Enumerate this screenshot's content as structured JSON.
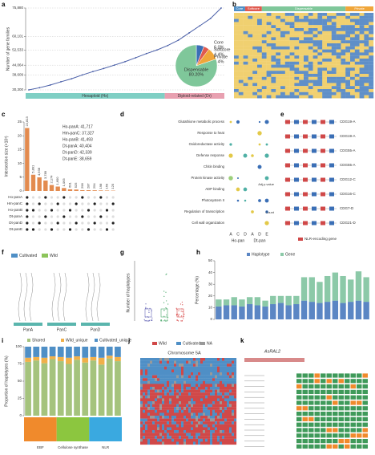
{
  "letters": [
    "a",
    "b",
    "c",
    "d",
    "e",
    "f",
    "g",
    "h",
    "i",
    "j",
    "k"
  ],
  "chart_data": [
    {
      "type": "line",
      "ylabel": "Number of gene families",
      "values": [
        30300,
        31500,
        33000,
        34800,
        36500,
        38600,
        40500,
        42200,
        44064,
        46000,
        48200,
        50500,
        52533,
        55000,
        58000,
        62000,
        66000,
        70000,
        75880
      ],
      "ylim": [
        30300,
        75880
      ],
      "yticks": [
        {
          "value": 30300,
          "label": "30,300"
        },
        {
          "value": 38609,
          "label": "38,609"
        },
        {
          "value": 44064,
          "label": "44,064"
        },
        {
          "value": 52533,
          "label": "52,533"
        },
        {
          "value": 60101,
          "label": "60,101"
        },
        {
          "value": 75880,
          "label": "75,880"
        }
      ],
      "color": "#4a5fa8",
      "groups": [
        {
          "name": "Hexaploid (Hx)",
          "color": "#7fcfc4"
        },
        {
          "name": "Diploid-related (Dr)",
          "color": "#e8a0b0"
        }
      ]
    },
    {
      "type": "pie",
      "categories": [
        "Core",
        "Softcore",
        "Private",
        "Dispensable"
      ],
      "values": [
        6.0,
        4.4,
        9.4,
        80.2
      ],
      "value_labels": [
        "6.0%",
        "4.4%",
        "9.4%",
        "80.20%"
      ],
      "colors": [
        "#3b6fb6",
        "#e05a4f",
        "#f0a63a",
        "#7fc79a"
      ]
    },
    {
      "type": "bar",
      "ylabel": "Intersection size (×10³)",
      "values": [
        22813,
        5891,
        4938,
        3789,
        2174,
        1600,
        1063,
        601,
        525,
        298,
        287,
        254,
        198,
        159,
        120
      ],
      "value_labels": [
        "22,813",
        "5,891",
        "4,938",
        "3,789",
        "2,174",
        "1,600",
        "1,063",
        "601",
        "525",
        "298",
        "287",
        "254",
        "198",
        "159",
        "120"
      ],
      "ylim": [
        0,
        25000
      ],
      "yticks": [
        {
          "value": 0,
          "label": "0"
        },
        {
          "value": 5000,
          "label": "5"
        },
        {
          "value": 10000,
          "label": "10"
        },
        {
          "value": 15000,
          "label": "15"
        },
        {
          "value": 20000,
          "label": "20"
        },
        {
          "value": 25000,
          "label": "25"
        }
      ],
      "color": "#e38b4f",
      "sets": [
        "Ho-panA",
        "Hm-panC",
        "Ho-panB",
        "Dt-panA",
        "Dt-panD",
        "Dt-panE"
      ],
      "set_sizes": [
        "Ho-panA: 41,717",
        "Hm-panC: 37,327",
        "Ho-panB: 41,493",
        "Dt-panA: 40,404",
        "Dt-panD: 42,339",
        "Dt-panE: 38,659"
      ]
    },
    {
      "type": "stacked_bar",
      "ylabel": "Percentage (%)",
      "categories": [
        null,
        null,
        null,
        null,
        null,
        null,
        null,
        null,
        null,
        null,
        null,
        null,
        null,
        null,
        null,
        null,
        null,
        null,
        null,
        null
      ],
      "series": [
        {
          "name": "Haplotype",
          "color": "#5b86c4",
          "values": [
            11,
            12,
            12,
            11,
            13,
            12,
            11,
            13,
            14,
            12,
            13,
            16,
            15,
            14,
            15,
            16,
            14,
            15,
            16,
            15
          ]
        },
        {
          "name": "Gene",
          "color": "#8cc9a8",
          "values": [
            6,
            5,
            7,
            6,
            6,
            7,
            5,
            7,
            6,
            8,
            7,
            20,
            21,
            18,
            22,
            24,
            23,
            19,
            25,
            21
          ]
        }
      ],
      "ylim": [
        0,
        50
      ],
      "yticks": [
        0,
        10,
        20,
        30,
        40,
        50
      ]
    },
    {
      "type": "stacked_bar",
      "ylabel": "Proportion of haplotypes (%)",
      "categories": [
        null,
        null,
        null,
        null,
        null,
        null,
        null,
        null,
        null,
        null,
        null,
        null
      ],
      "series": [
        {
          "name": "Shared",
          "color": "#a5c37d",
          "values": [
            78,
            80,
            76,
            82,
            79,
            75,
            81,
            77,
            80,
            74,
            83,
            79
          ]
        },
        {
          "name": "Wild_unique",
          "color": "#f0b04a",
          "values": [
            6,
            5,
            8,
            4,
            6,
            9,
            5,
            7,
            5,
            10,
            4,
            6
          ]
        },
        {
          "name": "Cultivated_unique",
          "color": "#4f8fc6",
          "values": [
            16,
            15,
            16,
            14,
            15,
            16,
            14,
            16,
            15,
            16,
            13,
            15
          ]
        }
      ],
      "ylim": [
        0,
        100
      ],
      "yticks": [
        0,
        25,
        50,
        75,
        100
      ],
      "groups": [
        {
          "name": "EBF",
          "color": "#f08a2c"
        },
        {
          "name": "Cellulose synthase",
          "color": "#8cc63f"
        },
        {
          "name": "NLR",
          "color": "#3aa9e0"
        }
      ]
    }
  ],
  "b": {
    "bands": [
      "Core",
      "Softcore",
      "Dispensable",
      "Private"
    ]
  },
  "d": {
    "terms": [
      "Glutathione metabolic process",
      "Response to heat",
      "Oxidoreductase activity",
      "Defense response",
      "Chitin binding",
      "Protein kinase activity",
      "ADP binding",
      "Photosystem II",
      "Regulation of transcription",
      "Cell wall organization"
    ],
    "columns": [
      "A",
      "C",
      "D",
      "A",
      "D",
      "E"
    ],
    "column_groups": [
      "Ho-pan",
      "Dt-pan"
    ],
    "legend_color": "Adj.p.value",
    "legend_size": "Count"
  },
  "e": {
    "genes": [
      "CDG19-A",
      "CDG19-A",
      "CDG55-A",
      "CDG55-A",
      "CDG12-C",
      "CDG16-C",
      "CDG7-D",
      "CDG21-D"
    ],
    "legend": "NLR-encoding gene"
  },
  "f": {
    "legend": [
      "Cultivated",
      "Wild"
    ],
    "groups": [
      "PanA",
      "PanC",
      "PanD"
    ]
  },
  "g": {
    "ylabel": "Number of haplotypes"
  },
  "j": {
    "title": "Chromosome 5A",
    "legend": [
      "Wild",
      "Cultivated",
      "NA"
    ]
  },
  "k": {
    "gene": "AsRAL2"
  }
}
